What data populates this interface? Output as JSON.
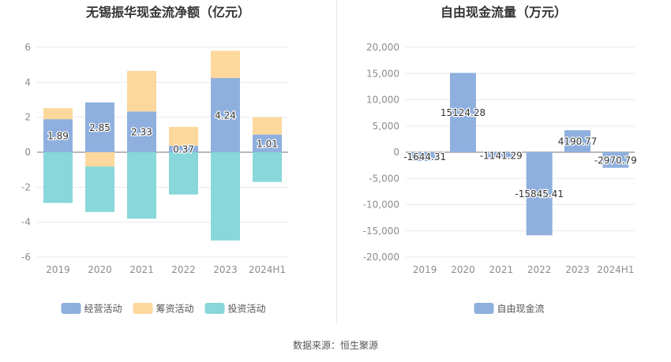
{
  "source_note": "数据来源：恒生聚源",
  "chart_data": [
    {
      "type": "bar",
      "stacked": true,
      "title": "无锡振华现金流净额（亿元）",
      "categories": [
        "2019",
        "2020",
        "2021",
        "2022",
        "2023",
        "2024H1"
      ],
      "yticks": [
        "6",
        "4",
        "2",
        "0",
        "-2",
        "-4",
        "-6"
      ],
      "ylim": [
        -6,
        6
      ],
      "grid": true,
      "legend_position": "bottom-center",
      "series": [
        {
          "name": "经营活动",
          "color": "#8fb0de",
          "values": [
            1.89,
            2.85,
            2.33,
            0.37,
            4.24,
            1.01
          ],
          "labels": [
            "1.89",
            "2.85",
            "2.33",
            "0.37",
            "4.24",
            "1.01"
          ]
        },
        {
          "name": "筹资活动",
          "color": "#fdd89c",
          "values": [
            0.63,
            -0.82,
            2.32,
            1.08,
            1.56,
            0.99
          ]
        },
        {
          "name": "投资活动",
          "color": "#88d7da",
          "values": [
            -2.9,
            -2.6,
            -3.8,
            -2.42,
            -5.05,
            -1.7
          ]
        }
      ]
    },
    {
      "type": "bar",
      "title": "自由现金流量（万元）",
      "categories": [
        "2019",
        "2020",
        "2021",
        "2022",
        "2023",
        "2024H1"
      ],
      "yticks": [
        "20,000",
        "15,000",
        "10,000",
        "5,000",
        "0",
        "-5,000",
        "-10,000",
        "-15,000",
        "-20,000"
      ],
      "ylim": [
        -20000,
        20000
      ],
      "grid": true,
      "legend_position": "bottom-center",
      "series": [
        {
          "name": "自由现金流",
          "color": "#8fb0de",
          "values": [
            -1644.31,
            15124.28,
            -1141.29,
            -15845.41,
            4190.77,
            -2970.79
          ],
          "labels": [
            "-1644.31",
            "15124.28",
            "-1141.29",
            "-15845.41",
            "4190.77",
            "-2970.79"
          ]
        }
      ]
    }
  ]
}
